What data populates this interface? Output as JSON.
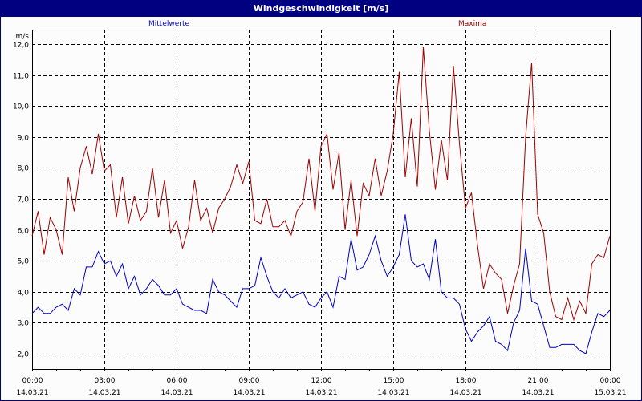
{
  "window": {
    "title": "Windgeschwindigkeit [m/s]"
  },
  "legend": {
    "mean_label": "Mittelwerte",
    "max_label": "Maxima"
  },
  "colors": {
    "titlebar": "#000080",
    "mean": "#0000c8",
    "max": "#a00000",
    "grid": "#000000"
  },
  "chart_data": {
    "type": "line",
    "title": "Windgeschwindigkeit [m/s]",
    "xlabel": "",
    "ylabel": "m/s",
    "ylim": [
      2.0,
      12.0
    ],
    "yticks": [
      "2,0",
      "3,0",
      "4,0",
      "5,0",
      "6,0",
      "7,0",
      "8,0",
      "9,0",
      "10,0",
      "11,0",
      "12,0"
    ],
    "xticks": [
      {
        "time": "00:00",
        "date": "14.03.21"
      },
      {
        "time": "03:00",
        "date": "14.03.21"
      },
      {
        "time": "06:00",
        "date": "14.03.21"
      },
      {
        "time": "09:00",
        "date": "14.03.21"
      },
      {
        "time": "12:00",
        "date": "14.03.21"
      },
      {
        "time": "15:00",
        "date": "14.03.21"
      },
      {
        "time": "18:00",
        "date": "14.03.21"
      },
      {
        "time": "21:00",
        "date": "14.03.21"
      },
      {
        "time": "00:00",
        "date": "15.03.21"
      }
    ],
    "grid": true,
    "legend_position": "top",
    "x_hours": [
      0,
      0.25,
      0.5,
      0.75,
      1,
      1.25,
      1.5,
      1.75,
      2,
      2.25,
      2.5,
      2.75,
      3,
      3.25,
      3.5,
      3.75,
      4,
      4.25,
      4.5,
      4.75,
      5,
      5.25,
      5.5,
      5.75,
      6,
      6.25,
      6.5,
      6.75,
      7,
      7.25,
      7.5,
      7.75,
      8,
      8.25,
      8.5,
      8.75,
      9,
      9.25,
      9.5,
      9.75,
      10,
      10.25,
      10.5,
      10.75,
      11,
      11.25,
      11.5,
      11.75,
      12,
      12.25,
      12.5,
      12.75,
      13,
      13.25,
      13.5,
      13.75,
      14,
      14.25,
      14.5,
      14.75,
      15,
      15.25,
      15.5,
      15.75,
      16,
      16.25,
      16.5,
      16.75,
      17,
      17.25,
      17.5,
      17.75,
      18,
      18.25,
      18.5,
      18.75,
      19,
      19.25,
      19.5,
      19.75,
      20,
      20.25,
      20.5,
      20.75,
      21,
      21.25,
      21.5,
      21.75,
      22,
      22.25,
      22.5,
      22.75,
      23,
      23.25,
      23.5,
      23.75,
      24
    ],
    "series": [
      {
        "name": "Maxima",
        "color": "#a00000",
        "values": [
          5.8,
          6.6,
          5.2,
          6.4,
          6.0,
          5.2,
          7.7,
          6.6,
          8.0,
          8.7,
          7.8,
          9.1,
          7.9,
          8.1,
          6.4,
          7.7,
          6.2,
          7.1,
          6.3,
          6.6,
          8.0,
          6.4,
          7.6,
          5.9,
          6.3,
          5.4,
          6.1,
          7.6,
          6.3,
          6.7,
          5.9,
          6.7,
          7.0,
          7.4,
          8.1,
          7.5,
          8.2,
          6.3,
          6.2,
          7.0,
          6.1,
          6.1,
          6.3,
          5.8,
          6.6,
          6.9,
          8.3,
          6.6,
          8.7,
          9.1,
          7.3,
          8.5,
          6.0,
          7.6,
          5.8,
          7.5,
          7.1,
          8.3,
          7.1,
          7.9,
          9.1,
          11.1,
          7.7,
          9.6,
          7.4,
          11.9,
          9.2,
          7.3,
          8.9,
          7.6,
          11.3,
          8.8,
          6.7,
          7.2,
          5.5,
          4.1,
          4.9,
          4.6,
          4.4,
          3.3,
          4.2,
          4.9,
          9.0,
          11.4,
          6.5,
          5.9,
          4.0,
          3.2,
          3.1,
          3.8,
          3.1,
          3.7,
          3.3,
          4.9,
          5.2,
          5.1,
          5.8
        ]
      },
      {
        "name": "Mittelwerte",
        "color": "#0000c8",
        "values": [
          3.3,
          3.5,
          3.3,
          3.3,
          3.5,
          3.6,
          3.4,
          4.1,
          3.9,
          4.8,
          4.8,
          5.3,
          4.9,
          5.0,
          4.5,
          4.9,
          4.1,
          4.5,
          3.9,
          4.1,
          4.4,
          4.2,
          3.9,
          3.9,
          4.1,
          3.6,
          3.5,
          3.4,
          3.4,
          3.3,
          4.4,
          4.0,
          3.9,
          3.7,
          3.5,
          4.1,
          4.1,
          4.2,
          5.1,
          4.5,
          4.0,
          3.8,
          4.1,
          3.8,
          3.9,
          4.0,
          3.6,
          3.5,
          3.8,
          4.0,
          3.5,
          4.5,
          4.4,
          5.7,
          4.7,
          4.8,
          5.2,
          5.8,
          5.0,
          4.5,
          4.8,
          5.2,
          6.5,
          5.0,
          4.8,
          4.9,
          4.4,
          5.7,
          4.0,
          3.8,
          3.8,
          3.6,
          2.8,
          2.4,
          2.7,
          2.9,
          3.2,
          2.4,
          2.3,
          2.1,
          3.0,
          3.4,
          5.4,
          3.7,
          3.6,
          2.9,
          2.2,
          2.2,
          2.3,
          2.3,
          2.3,
          2.1,
          2.0,
          2.7,
          3.3,
          3.2,
          3.4
        ]
      }
    ]
  }
}
